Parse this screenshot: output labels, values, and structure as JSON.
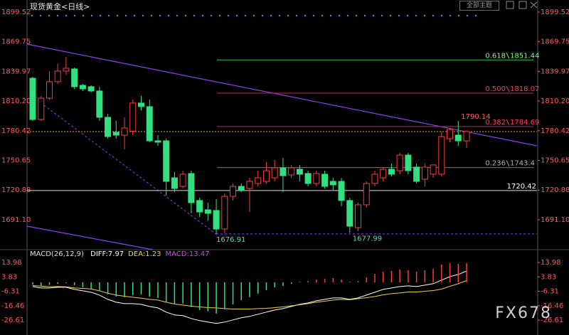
{
  "header": {
    "title": "现货黄金<日线>",
    "theme_button": "全部主题",
    "watermark": "FX678"
  },
  "chart_data": [
    {
      "type": "candlestick",
      "up_color": "#ff3b3b",
      "down_color": "#33e07f",
      "open": [
        1833.1,
        1791.7,
        1813.1,
        1829.6,
        1840.3,
        1842.4,
        1826.0,
        1824.6,
        1820.3,
        1793.9,
        1778.9,
        1776.0,
        1780.0,
        1808.2,
        1804.6,
        1770.3,
        1770.3,
        1733.2,
        1724.6,
        1737.5,
        1710.4,
        1701.1,
        1700.4,
        1681.8,
        1714.6,
        1724.6,
        1722.5,
        1727.5,
        1729.6,
        1733.2,
        1743.2,
        1736.1,
        1741.8,
        1737.5,
        1727.5,
        1736.8,
        1729.6,
        1729.6,
        1710.4,
        1683.2,
        1706.1,
        1727.5,
        1733.2,
        1741.8,
        1740.3,
        1756.0,
        1743.9,
        1731.8,
        1736.8,
        1736.8,
        1772.5,
        1776.0,
        1770.3
      ],
      "high": [
        1834.6,
        1815.3,
        1840.3,
        1847.4,
        1854.5,
        1843.8,
        1827.4,
        1826.0,
        1824.6,
        1797.4,
        1790.3,
        1793.9,
        1811.7,
        1815.3,
        1811.7,
        1776.0,
        1772.5,
        1738.9,
        1740.3,
        1740.3,
        1713.2,
        1708.2,
        1711.8,
        1717.5,
        1727.5,
        1727.5,
        1733.2,
        1740.3,
        1749.0,
        1751.0,
        1753.2,
        1746.1,
        1746.1,
        1740.3,
        1740.3,
        1740.3,
        1733.2,
        1733.2,
        1713.2,
        1708.2,
        1729.6,
        1740.3,
        1743.9,
        1747.5,
        1758.2,
        1758.2,
        1747.5,
        1747.5,
        1746.1,
        1779.6,
        1783.2,
        1790.14,
        1781.0
      ],
      "low": [
        1790.3,
        1790.3,
        1811.7,
        1827.4,
        1836.7,
        1822.4,
        1820.3,
        1818.9,
        1790.3,
        1772.5,
        1772.5,
        1761.8,
        1776.0,
        1801.0,
        1768.9,
        1765.3,
        1715.3,
        1718.9,
        1722.5,
        1697.5,
        1693.9,
        1690.4,
        1676.91,
        1677.5,
        1710.4,
        1718.9,
        1698.9,
        1724.6,
        1727.5,
        1729.6,
        1718.9,
        1733.2,
        1729.6,
        1724.6,
        1724.6,
        1722.5,
        1720.3,
        1704.6,
        1677.99,
        1679.6,
        1703.2,
        1724.6,
        1729.6,
        1734.6,
        1736.8,
        1736.8,
        1727.5,
        1724.6,
        1733.2,
        1734.6,
        1768.9,
        1765.3,
        1763.2
      ],
      "close": [
        1791.7,
        1813.1,
        1829.6,
        1840.3,
        1843.1,
        1824.6,
        1822.4,
        1820.3,
        1793.9,
        1774.6,
        1776.0,
        1783.2,
        1808.2,
        1804.6,
        1770.3,
        1768.9,
        1729.6,
        1722.5,
        1736.8,
        1708.2,
        1698.9,
        1697.5,
        1681.8,
        1714.6,
        1724.6,
        1720.3,
        1729.6,
        1733.2,
        1740.3,
        1743.2,
        1735.3,
        1743.2,
        1736.8,
        1727.5,
        1737.5,
        1724.6,
        1726.1,
        1710.4,
        1684.6,
        1706.1,
        1727.5,
        1736.8,
        1741.8,
        1736.8,
        1756.0,
        1740.3,
        1729.6,
        1743.9,
        1746.1,
        1774.6,
        1781.7,
        1770.3,
        1779.6
      ],
      "ylim": [
        1661.8,
        1905.9
      ],
      "yticks": [
        1899.52,
        1869.75,
        1839.97,
        {
          "value": 1810.2,
          "label": "1810.20"
        },
        1780.42,
        1750.65,
        1720.88,
        {
          "value": 1691.1,
          "label": "1691.10"
        }
      ],
      "tick_color": "#ff5a5a",
      "fib_levels": [
        {
          "ratio": "0.618",
          "value": 1851.44,
          "color": "#2fbf3f",
          "text_color": "#7dff7d"
        },
        {
          "ratio": "0.500",
          "value": 1818.07,
          "color": "#d0224a",
          "text_color": "#ff3b5c"
        },
        {
          "ratio": "0.382",
          "value": 1784.69,
          "color": "#d0224a",
          "text_color": "#ff3b5c"
        },
        {
          "ratio": "0.236",
          "value": 1743.4,
          "color": "#777777",
          "text_color": "#b0b0b0"
        }
      ],
      "support": {
        "value": 1720.42,
        "color": "#dddddd"
      }
    },
    {
      "type": "macd",
      "title": "MACD(26,12,9)",
      "ylim": [
        -34.1,
        19.5
      ],
      "yticks": [
        13.98,
        3.83,
        -6.31,
        -16.46,
        -26.61
      ],
      "series": [
        {
          "name": "DIFF",
          "color": "#ffffff",
          "values": [
            -3,
            -4,
            -4,
            -3.5,
            -3.5,
            -5,
            -6,
            -7,
            -9,
            -12,
            -14,
            -15,
            -15,
            -15.5,
            -17,
            -18,
            -21,
            -23,
            -23.5,
            -25.5,
            -27,
            -28,
            -29,
            -28,
            -26.5,
            -25,
            -24,
            -22.5,
            -21,
            -19.5,
            -18.5,
            -17,
            -15.5,
            -14.5,
            -13,
            -12,
            -11,
            -11,
            -12,
            -11,
            -9,
            -7,
            -5,
            -4,
            -3,
            -2.5,
            -3,
            -2,
            -1,
            1.5,
            4,
            5.5,
            7.97
          ]
        },
        {
          "name": "DEA",
          "color": "#f2d22e",
          "values": [
            -2.3,
            -2.7,
            -3.1,
            -3.0,
            -3.2,
            -4.0,
            -4.3,
            -4.7,
            -6.0,
            -7.7,
            -9.0,
            -9.8,
            -10.5,
            -11.2,
            -12.0,
            -12.5,
            -14.0,
            -15.3,
            -16.0,
            -16.8,
            -17.3,
            -17.8,
            -18.0,
            -18.5,
            -18.8,
            -18.8,
            -18.8,
            -18.5,
            -18.3,
            -17.8,
            -17.3,
            -16.5,
            -15.8,
            -15.0,
            -14.0,
            -13.3,
            -12.5,
            -12.0,
            -12.3,
            -11.5,
            -10.8,
            -10.0,
            -8.8,
            -8.0,
            -7.5,
            -6.8,
            -6.8,
            -6.3,
            -5.8,
            -4.8,
            -2.8,
            -1.0,
            1.23
          ]
        },
        {
          "name": "MACD",
          "color": "#e040fb",
          "bars": true,
          "up_color": "#ff3b3b",
          "down_color": "#33e07f",
          "values": [
            -1.5,
            -2.5,
            -1.8,
            -1.0,
            -0.5,
            -2.0,
            -3.5,
            -4.5,
            -6.0,
            -8.5,
            -10,
            -10.5,
            -9,
            -8.5,
            -10,
            -11,
            -14,
            -15.5,
            -15,
            -17.5,
            -19.5,
            -20.5,
            -22,
            -19,
            -15.5,
            -12.5,
            -10.5,
            -8,
            -5.5,
            -3.5,
            -2.5,
            -1,
            0.5,
            1,
            2,
            2.5,
            3,
            2,
            0.5,
            1,
            3.5,
            6,
            7.5,
            8,
            9,
            8.5,
            7.5,
            8.5,
            9.5,
            12.5,
            13.5,
            13,
            13.47
          ]
        }
      ]
    }
  ]
}
